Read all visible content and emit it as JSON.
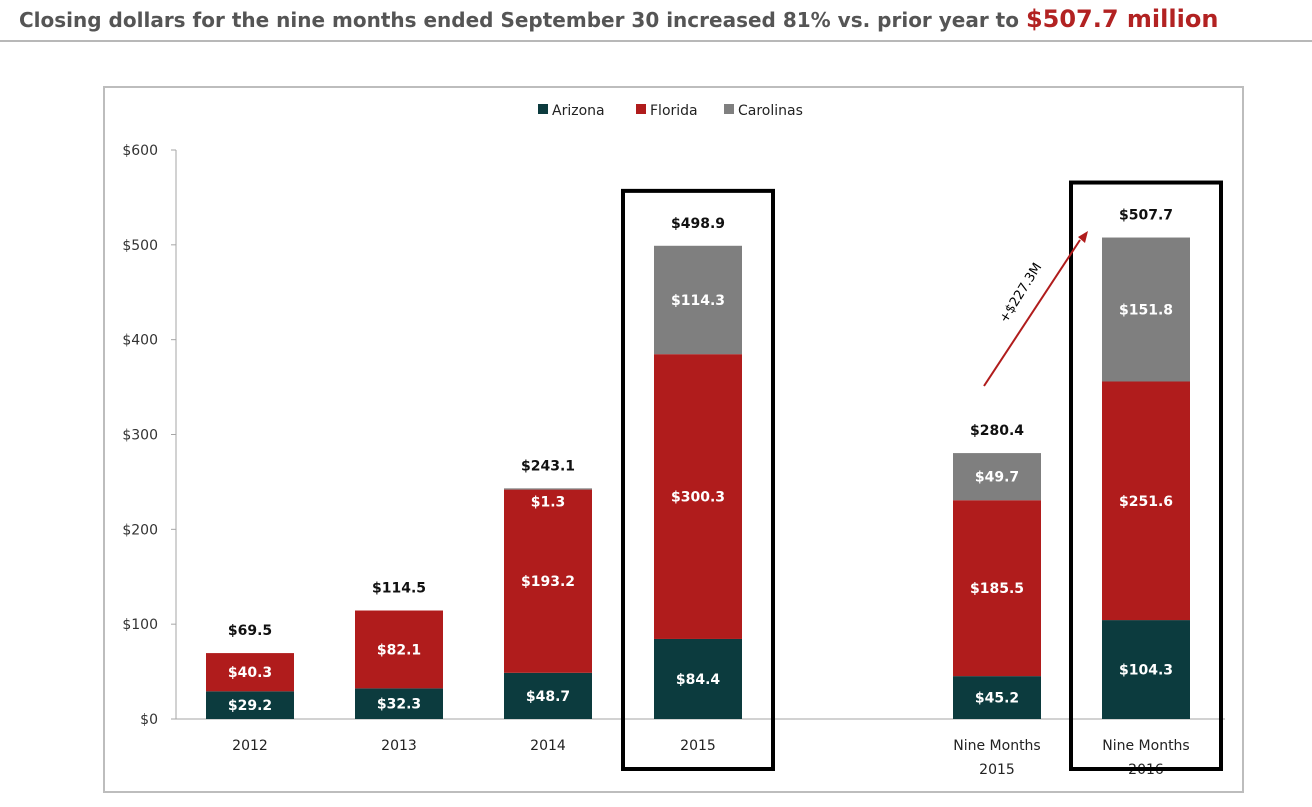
{
  "headline": {
    "text": "Closing dollars for the nine months ended September 30 increased 81% vs. prior year to ",
    "amount": "$507.7 million"
  },
  "annotation": {
    "text": "+$227.3M"
  },
  "chart_data": {
    "type": "bar",
    "stacked": true,
    "categories": [
      "2012",
      "2013",
      "2014",
      "2015",
      "Nine Months 2015",
      "Nine Months 2016"
    ],
    "category_labels": [
      [
        "2012"
      ],
      [
        "2013"
      ],
      [
        "2014"
      ],
      [
        "2015"
      ],
      [
        "Nine Months",
        "2015"
      ],
      [
        "Nine Months",
        "2016"
      ]
    ],
    "series": [
      {
        "name": "Arizona",
        "color": "#0c3b3e",
        "values": [
          29.2,
          32.3,
          48.7,
          84.4,
          45.2,
          104.3
        ],
        "labels": [
          "$29.2",
          "$32.3",
          "$48.7",
          "$84.4",
          "$45.2",
          "$104.3"
        ]
      },
      {
        "name": "Florida",
        "color": "#b01c1c",
        "values": [
          40.3,
          82.1,
          193.2,
          300.3,
          185.5,
          251.6
        ],
        "labels": [
          "$40.3",
          "$82.1",
          "$193.2",
          "$300.3",
          "$185.5",
          "$251.6"
        ]
      },
      {
        "name": "Carolinas",
        "color": "#7f7f7f",
        "values": [
          0,
          0,
          1.3,
          114.3,
          49.7,
          151.8
        ],
        "labels": [
          "",
          "",
          "$1.3",
          "$114.3",
          "$49.7",
          "$151.8"
        ]
      }
    ],
    "totals": [
      69.5,
      114.5,
      243.1,
      498.9,
      280.4,
      507.7
    ],
    "total_labels": [
      "$69.5",
      "$114.5",
      "$243.1",
      "$498.9",
      "$280.4",
      "$507.7"
    ],
    "yticks": [
      0,
      100,
      200,
      300,
      400,
      500,
      600
    ],
    "ytick_labels": [
      "$0",
      "$100",
      "$200",
      "$300",
      "$400",
      "$500",
      "$600"
    ],
    "ylim": [
      0,
      600
    ],
    "highlighted": [
      "2015",
      "Nine Months 2016"
    ],
    "legend_position": "top-center",
    "grid": false,
    "title": "",
    "xlabel": "",
    "ylabel": ""
  }
}
